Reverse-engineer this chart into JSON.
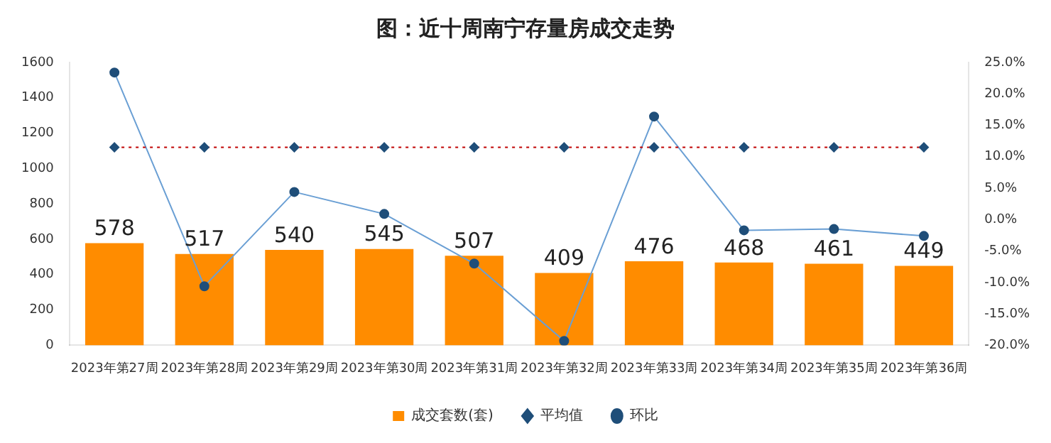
{
  "chart_data": {
    "type": "bar",
    "title": "图：近十周南宁存量房成交走势",
    "categories": [
      "2023年第27周",
      "2023年第28周",
      "2023年第29周",
      "2023年第30周",
      "2023年第31周",
      "2023年第32周",
      "2023年第33周",
      "2023年第34周",
      "2023年第35周",
      "2023年第36周"
    ],
    "series": [
      {
        "name": "成交套数(套)",
        "color": "#ff8c00",
        "values": [
          578,
          517,
          540,
          545,
          507,
          409,
          476,
          468,
          461,
          449
        ],
        "value_labels": [
          "578",
          "517",
          "540",
          "545",
          "507",
          "409",
          "476",
          "468",
          "461",
          "449"
        ]
      },
      {
        "name": "平均值",
        "type": "line",
        "color": "#c00000",
        "line_style": "dotted",
        "marker": "diamond",
        "values": [
          1120,
          1120,
          1120,
          1120,
          1120,
          1120,
          1120,
          1120,
          1120,
          1120
        ]
      },
      {
        "name": "环比",
        "type": "line",
        "axis": "y2",
        "color": "#6a9fd4",
        "line_style": "solid",
        "marker": "circle",
        "values": [
          23.4,
          -10.6,
          4.4,
          0.9,
          -7.0,
          -19.3,
          16.4,
          -1.7,
          -1.5,
          -2.6
        ]
      }
    ],
    "ylim": [
      0,
      1600
    ],
    "yticks": [
      0,
      200,
      400,
      600,
      800,
      1000,
      1200,
      1400,
      1600
    ],
    "y2lim": [
      -20,
      25
    ],
    "y2ticks": [
      {
        "value": -20,
        "label": "-20.0%"
      },
      {
        "value": -15,
        "label": "-15.0%"
      },
      {
        "value": -10,
        "label": "-10.0%"
      },
      {
        "value": -5,
        "label": "-5.0%"
      },
      {
        "value": 0,
        "label": "0.0%"
      },
      {
        "value": 5,
        "label": "5.0%"
      },
      {
        "value": 10,
        "label": "10.0%"
      },
      {
        "value": 15,
        "label": "15.0%"
      },
      {
        "value": 20,
        "label": "20.0%"
      },
      {
        "value": 25,
        "label": "25.0%"
      }
    ],
    "grid": false,
    "legend": "bottom"
  }
}
